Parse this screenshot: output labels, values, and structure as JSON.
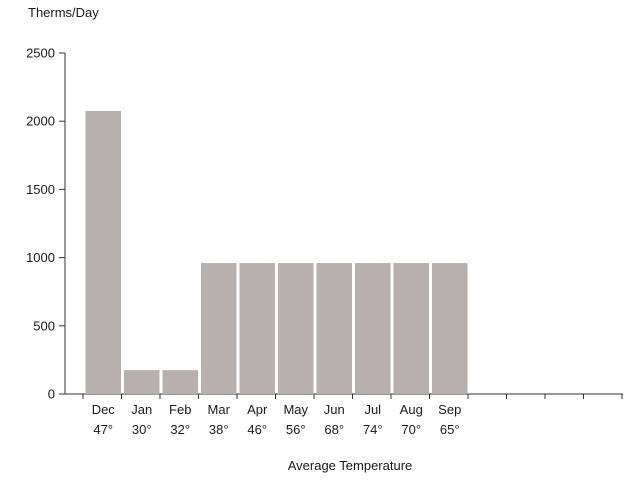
{
  "chart_data": {
    "type": "bar",
    "ylabel": "Therms/Day",
    "xlabel": "Average Temperature",
    "categories": [
      "Dec",
      "Jan",
      "Feb",
      "Mar",
      "Apr",
      "May",
      "Jun",
      "Jul",
      "Aug",
      "Sep"
    ],
    "temperatures": [
      "47°",
      "30°",
      "32°",
      "38°",
      "46°",
      "56°",
      "68°",
      "74°",
      "70°",
      "65°"
    ],
    "values": [
      2075,
      175,
      175,
      960,
      960,
      960,
      960,
      960,
      960,
      960
    ],
    "empty_slots": 4,
    "ylim": [
      0,
      2500
    ],
    "yticks": [
      "0",
      "500",
      "1000",
      "1500",
      "2000",
      "2500"
    ],
    "grid": false,
    "bar_color": "#b8b0ad"
  }
}
